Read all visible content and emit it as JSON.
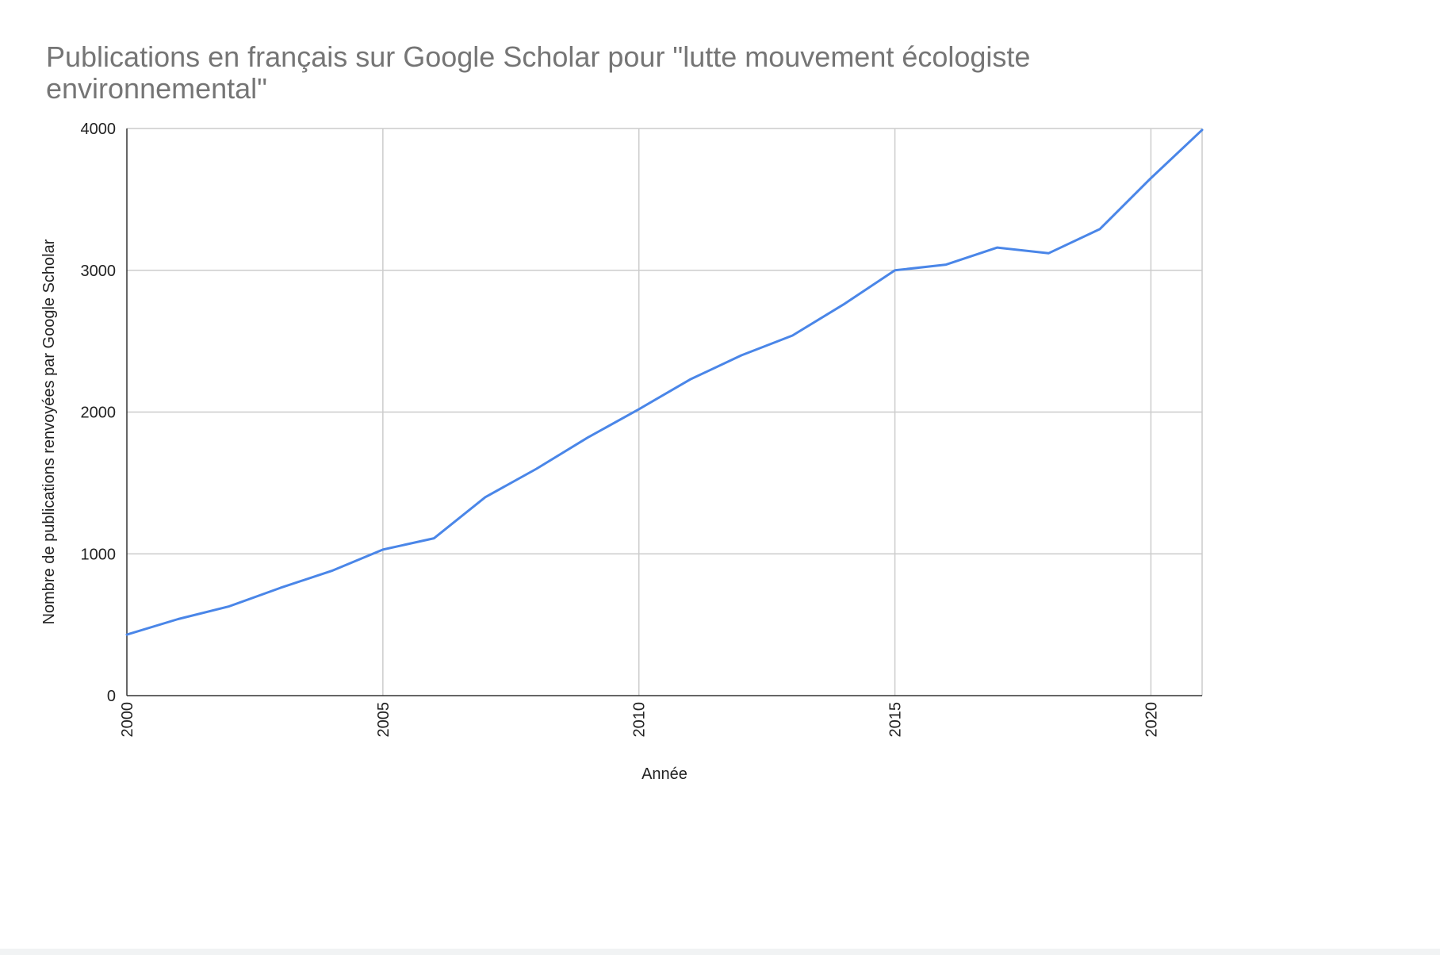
{
  "chart_data": {
    "type": "line",
    "title": "Publications en français sur Google Scholar pour \"lutte mouvement écologiste environnemental\"",
    "xlabel": "Année",
    "ylabel": "Nombre de publications renvoyées par Google Scholar",
    "xlim": [
      2000,
      2021
    ],
    "ylim": [
      0,
      4000
    ],
    "x_ticks": [
      "2000",
      "2005",
      "2010",
      "2015",
      "2020"
    ],
    "y_ticks": [
      "0",
      "1000",
      "2000",
      "3000",
      "4000"
    ],
    "grid": true,
    "legend": "none",
    "series": [
      {
        "color": "#4a86e8",
        "x": [
          2000,
          2001,
          2002,
          2003,
          2004,
          2005,
          2006,
          2007,
          2008,
          2009,
          2010,
          2011,
          2012,
          2013,
          2014,
          2015,
          2016,
          2017,
          2018,
          2019,
          2020,
          2021
        ],
        "values": [
          430,
          540,
          630,
          760,
          880,
          1030,
          1110,
          1400,
          1600,
          1820,
          2020,
          2230,
          2400,
          2540,
          2760,
          3000,
          3040,
          3160,
          3120,
          3290,
          3650,
          3990
        ]
      }
    ]
  }
}
